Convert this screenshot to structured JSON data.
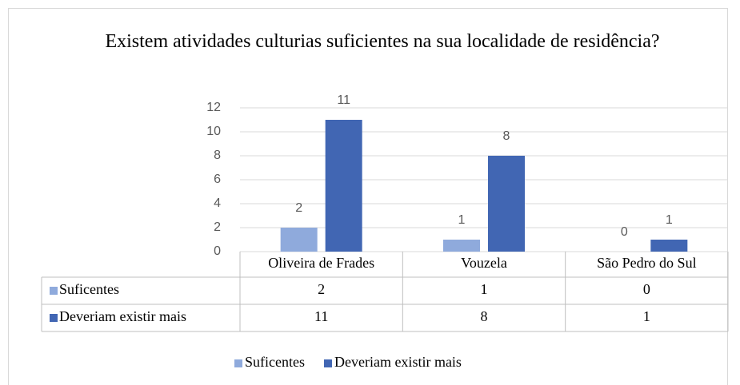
{
  "chart_data": {
    "type": "bar",
    "title": "Existem atividades culturias suficientes na sua localidade de residência?",
    "categories": [
      "Oliveira de Frades",
      "Vouzela",
      "São Pedro do Sul"
    ],
    "series": [
      {
        "name": "Suficentes",
        "color": "#8faadc",
        "values": [
          2,
          1,
          0
        ]
      },
      {
        "name": "Deveriam existir mais",
        "color": "#4166b3",
        "values": [
          11,
          8,
          1
        ]
      }
    ],
    "ylim": [
      0,
      12
    ],
    "yticks": [
      0,
      2,
      4,
      6,
      8,
      10,
      12
    ],
    "grid": true,
    "legend": "bottom",
    "data_table": true
  }
}
